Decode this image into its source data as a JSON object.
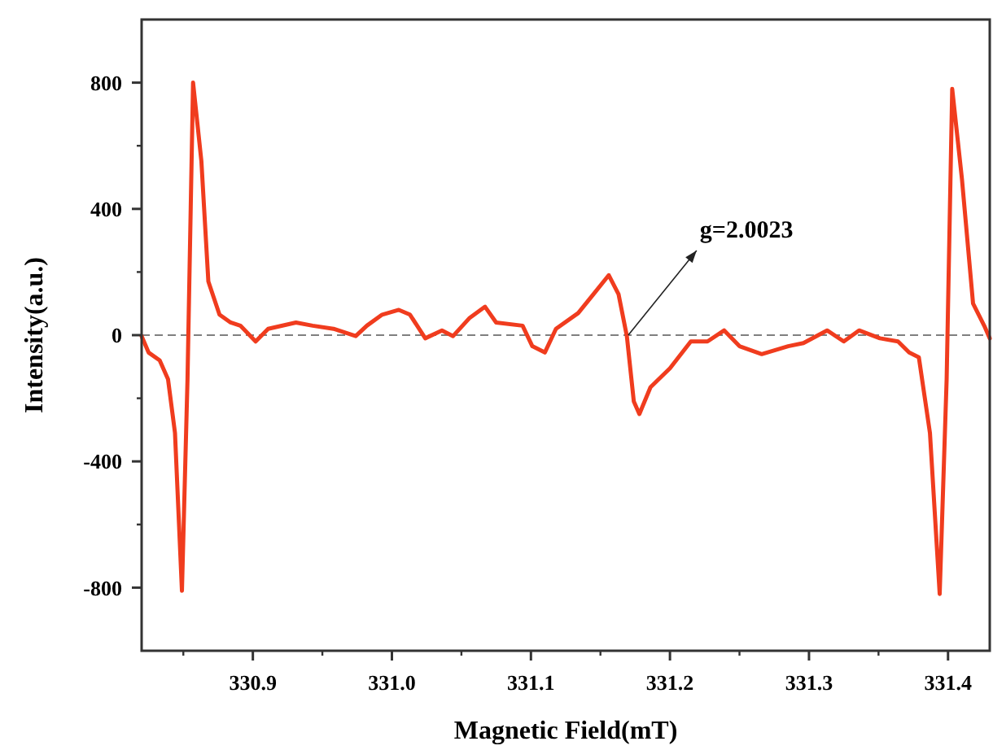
{
  "chart_data": {
    "type": "line",
    "xlabel": "Magnetic Field(mT)",
    "ylabel": "Intensity(a.u.)",
    "xlim": [
      330.82,
      331.43
    ],
    "xticks": [
      330.9,
      {
        "value": 331,
        "label": "331.0"
      },
      331.1,
      331.2,
      331.3,
      331.4
    ],
    "ylim": [
      -1000,
      1000
    ],
    "yticks": [
      -800,
      -400,
      0,
      400,
      800
    ],
    "grid": false,
    "line_style": "solid",
    "ref_lines": [
      {
        "axis": "y",
        "value": 0,
        "color": "#555555",
        "line_style": "dashed"
      }
    ],
    "annotations": [
      {
        "text": "g=2.0023",
        "x": 331.17,
        "y": 0
      }
    ],
    "series": [
      {
        "color": "#f03c1e",
        "x": [
          330.82,
          330.825,
          330.833,
          330.839,
          330.844,
          330.849,
          330.853,
          330.857,
          330.863,
          330.868,
          330.876,
          330.884,
          330.891,
          330.902,
          330.911,
          330.931,
          330.943,
          330.958,
          330.974,
          330.982,
          330.993,
          331.005,
          331.013,
          331.024,
          331.036,
          331.044,
          331.056,
          331.067,
          331.075,
          331.094,
          331.101,
          331.11,
          331.118,
          331.134,
          331.145,
          331.156,
          331.163,
          331.169,
          331.174,
          331.178,
          331.186,
          331.2,
          331.215,
          331.227,
          331.239,
          331.25,
          331.266,
          331.285,
          331.296,
          331.313,
          331.325,
          331.336,
          331.351,
          331.364,
          331.372,
          331.379,
          331.387,
          331.394,
          331.399,
          331.403,
          331.41,
          331.418,
          331.426,
          331.43
        ],
        "values": [
          -3,
          -55,
          -80,
          -140,
          -310,
          -810,
          -140,
          800,
          550,
          170,
          65,
          40,
          30,
          -20,
          20,
          40,
          30,
          20,
          -3,
          30,
          65,
          80,
          65,
          -10,
          15,
          -3,
          55,
          90,
          40,
          30,
          -35,
          -55,
          20,
          70,
          130,
          190,
          130,
          -3,
          -210,
          -250,
          -165,
          -105,
          -20,
          -20,
          15,
          -35,
          -60,
          -35,
          -25,
          15,
          -20,
          15,
          -10,
          -20,
          -55,
          -70,
          -310,
          -820,
          -140,
          780,
          495,
          100,
          30,
          -10
        ]
      }
    ]
  }
}
